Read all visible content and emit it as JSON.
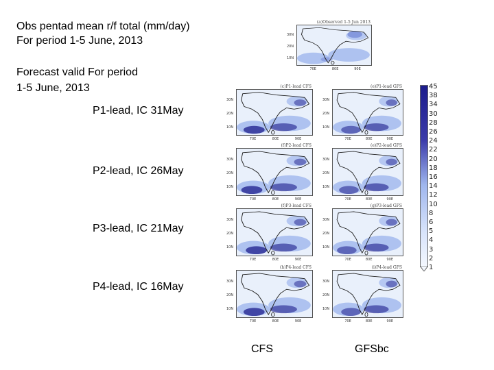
{
  "header": {
    "obs_line1": "Obs pentad mean r/f total (mm/day)",
    "obs_line2": "For period 1-5 June, 2013",
    "fc_line1": "Forecast valid For period",
    "fc_line2": "1-5 June, 2013"
  },
  "rows": [
    {
      "label": "P1-lead, IC 31May"
    },
    {
      "label": "P2-lead, IC 26May"
    },
    {
      "label": "P3-lead, IC 21May"
    },
    {
      "label": "P4-lead, IC 16May"
    }
  ],
  "columns": {
    "cfs": "CFS",
    "gfs": "GFSbc"
  },
  "panels": {
    "obs": "(a)Observed 1-5 Jun 2013",
    "p1_cfs": "(c)P1-lead CFS",
    "p1_gfs": "(e)P1-lead GFS",
    "p2_cfs": "(f)P2-lead CFS",
    "p2_gfs": "(e)P2-lead GFS",
    "p3_cfs": "(f)P3-lead CFS",
    "p3_gfs": "(g)P3-lead GFS",
    "p4_cfs": "(h)P4-lead CFS",
    "p4_gfs": "(i)P4-lead GFS"
  },
  "map_axes": {
    "lat": [
      "30N",
      "20N",
      "10N"
    ],
    "lon": [
      "70E",
      "80E",
      "90E"
    ]
  },
  "colorbar": {
    "labels": [
      "45",
      "38",
      "34",
      "30",
      "28",
      "26",
      "24",
      "22",
      "20",
      "18",
      "16",
      "14",
      "12",
      "10",
      "8",
      "6",
      "5",
      "4",
      "3",
      "2",
      "1"
    ],
    "colors": {
      "low": "#f4f8ff",
      "mid": "#9fb6ee",
      "high": "#1c1c8c"
    }
  }
}
